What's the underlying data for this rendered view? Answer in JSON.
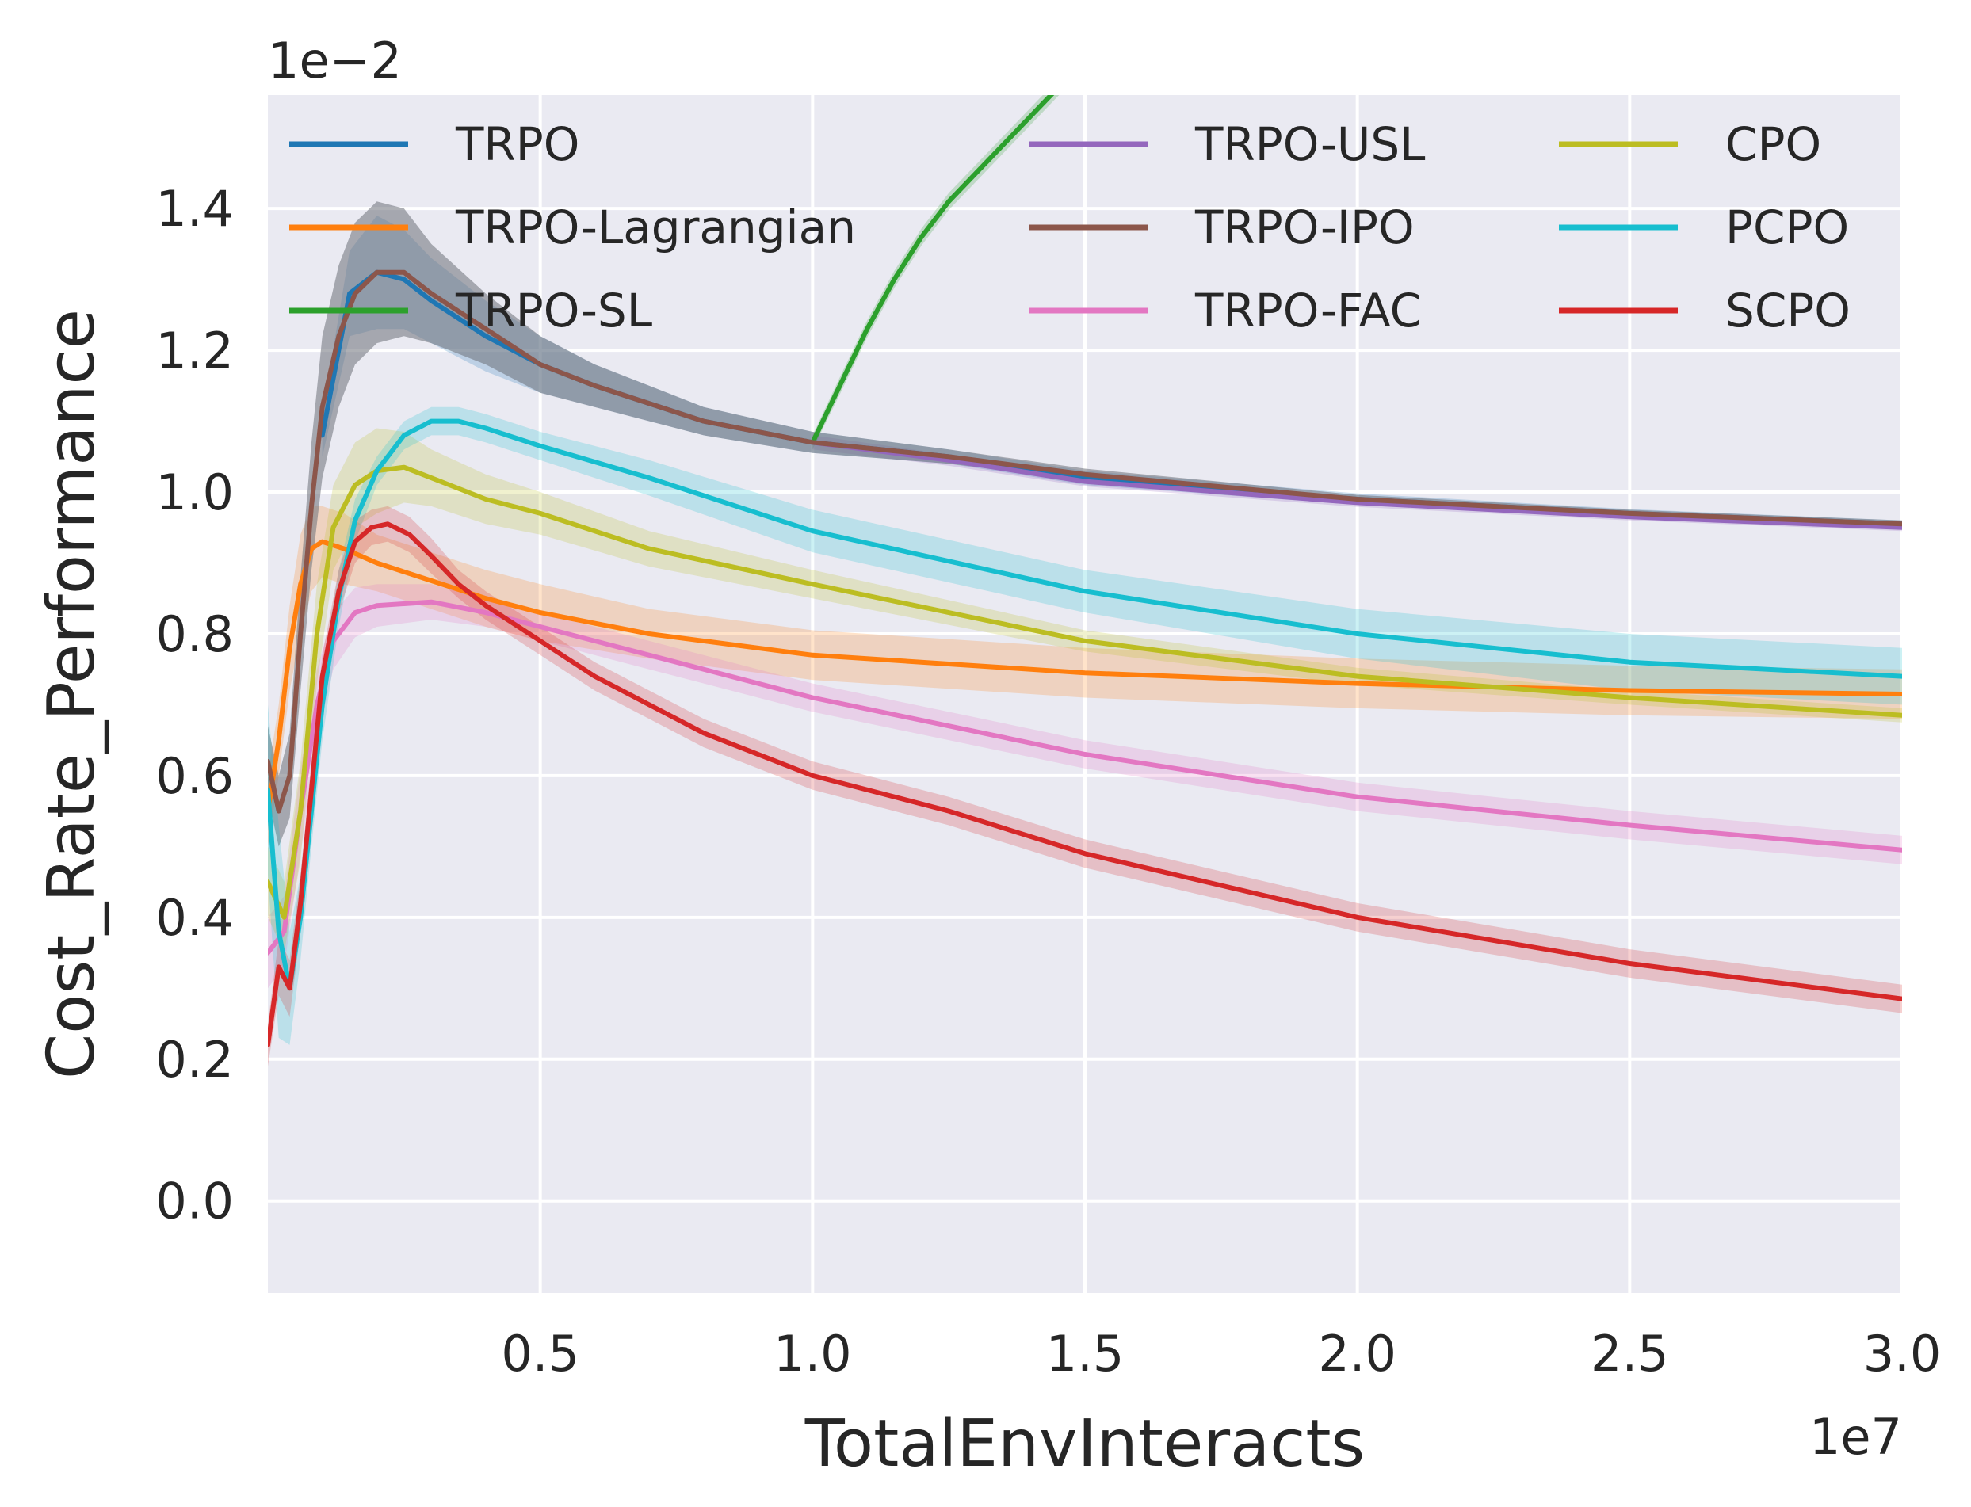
{
  "chart_data": {
    "type": "line",
    "title": "",
    "xlabel": "TotalEnvInteracts",
    "ylabel": "Cost_Rate_Performance",
    "x_offset_label": "1e7",
    "y_offset_label": "1e−2",
    "xlim": [
      0.0,
      3.0
    ],
    "ylim": [
      -0.13,
      1.56
    ],
    "grid": true,
    "background": "#eaeaf2",
    "legend_position": "top",
    "xticks": [
      "0.5",
      "1.0",
      "1.5",
      "2.0",
      "2.5",
      "3.0"
    ],
    "yticks": [
      "0.0",
      "0.2",
      "0.4",
      "0.6",
      "0.8",
      "1.0",
      "1.2",
      "1.4"
    ],
    "series": [
      {
        "name": "TRPO",
        "color": "#1f77b4",
        "x": [
          0.1,
          0.15,
          0.2,
          0.25,
          0.3,
          0.4,
          0.5,
          0.6,
          0.8,
          1.0,
          1.25,
          1.5,
          2.0,
          2.5,
          3.0
        ],
        "y": [
          1.08,
          1.28,
          1.31,
          1.3,
          1.27,
          1.22,
          1.18,
          1.15,
          1.1,
          1.07,
          1.05,
          1.02,
          0.99,
          0.97,
          0.955
        ],
        "band": [
          0.03,
          0.06,
          0.08,
          0.07,
          0.06,
          0.05,
          0.04,
          0.03,
          0.02,
          0.015,
          0.01,
          0.01,
          0.008,
          0.006,
          0.005
        ]
      },
      {
        "name": "TRPO-Lagrangian",
        "color": "#ff7f0e",
        "x": [
          0.0,
          0.02,
          0.04,
          0.06,
          0.08,
          0.1,
          0.14,
          0.2,
          0.3,
          0.4,
          0.5,
          0.7,
          1.0,
          1.5,
          2.0,
          2.5,
          3.0
        ],
        "y": [
          0.55,
          0.65,
          0.78,
          0.87,
          0.92,
          0.93,
          0.92,
          0.9,
          0.875,
          0.85,
          0.83,
          0.8,
          0.77,
          0.745,
          0.73,
          0.72,
          0.715
        ],
        "band": [
          0.05,
          0.05,
          0.06,
          0.07,
          0.06,
          0.05,
          0.05,
          0.04,
          0.04,
          0.04,
          0.04,
          0.035,
          0.035,
          0.035,
          0.035,
          0.035,
          0.035
        ]
      },
      {
        "name": "TRPO-SL",
        "color": "#2ca02c",
        "x": [
          1.0,
          1.05,
          1.1,
          1.15,
          1.2,
          1.25,
          1.3,
          1.35,
          1.4,
          1.45,
          1.5,
          1.55,
          1.6
        ],
        "y": [
          1.07,
          1.15,
          1.23,
          1.3,
          1.36,
          1.41,
          1.45,
          1.49,
          1.53,
          1.57,
          1.61,
          1.65,
          1.69
        ],
        "band": [
          0.01,
          0.012,
          0.012,
          0.012,
          0.012,
          0.012,
          0.012,
          0.012,
          0.012,
          0.012,
          0.012,
          0.012,
          0.012
        ]
      },
      {
        "name": "TRPO-USL",
        "color": "#9467bd",
        "x": [
          1.0,
          1.25,
          1.5,
          2.0,
          2.5,
          3.0
        ],
        "y": [
          1.07,
          1.045,
          1.015,
          0.985,
          0.965,
          0.95
        ],
        "band": [
          0.01,
          0.008,
          0.007,
          0.006,
          0.005,
          0.005
        ]
      },
      {
        "name": "TRPO-IPO",
        "color": "#8c564b",
        "x": [
          0.0,
          0.02,
          0.04,
          0.06,
          0.08,
          0.1,
          0.13,
          0.16,
          0.2,
          0.25,
          0.3,
          0.4,
          0.5,
          0.6,
          0.8,
          1.0,
          1.25,
          1.5,
          2.0,
          2.5,
          3.0
        ],
        "y": [
          0.62,
          0.55,
          0.6,
          0.8,
          0.98,
          1.12,
          1.22,
          1.28,
          1.31,
          1.31,
          1.28,
          1.23,
          1.18,
          1.15,
          1.1,
          1.07,
          1.05,
          1.025,
          0.99,
          0.97,
          0.955
        ],
        "band": [
          0.05,
          0.05,
          0.06,
          0.08,
          0.09,
          0.1,
          0.1,
          0.1,
          0.1,
          0.09,
          0.07,
          0.05,
          0.04,
          0.03,
          0.02,
          0.015,
          0.01,
          0.008,
          0.006,
          0.005,
          0.005
        ]
      },
      {
        "name": "TRPO-FAC",
        "color": "#e377c2",
        "x": [
          0.0,
          0.03,
          0.06,
          0.09,
          0.12,
          0.16,
          0.2,
          0.3,
          0.4,
          0.5,
          0.7,
          1.0,
          1.5,
          2.0,
          2.5,
          3.0
        ],
        "y": [
          0.35,
          0.38,
          0.55,
          0.7,
          0.79,
          0.83,
          0.84,
          0.845,
          0.83,
          0.81,
          0.77,
          0.71,
          0.63,
          0.57,
          0.53,
          0.495
        ],
        "band": [
          0.05,
          0.05,
          0.06,
          0.05,
          0.04,
          0.035,
          0.03,
          0.025,
          0.02,
          0.02,
          0.02,
          0.02,
          0.02,
          0.02,
          0.02,
          0.02
        ]
      },
      {
        "name": "CPO",
        "color": "#bcbd22",
        "x": [
          0.0,
          0.03,
          0.06,
          0.09,
          0.12,
          0.16,
          0.2,
          0.25,
          0.3,
          0.4,
          0.5,
          0.7,
          1.0,
          1.5,
          2.0,
          2.5,
          3.0
        ],
        "y": [
          0.45,
          0.4,
          0.55,
          0.8,
          0.95,
          1.01,
          1.03,
          1.035,
          1.02,
          0.99,
          0.97,
          0.92,
          0.87,
          0.79,
          0.74,
          0.71,
          0.685
        ],
        "band": [
          0.05,
          0.05,
          0.07,
          0.07,
          0.06,
          0.06,
          0.06,
          0.05,
          0.04,
          0.035,
          0.03,
          0.025,
          0.02,
          0.015,
          0.012,
          0.01,
          0.01
        ]
      },
      {
        "name": "PCPO",
        "color": "#17becf",
        "x": [
          0.0,
          0.02,
          0.04,
          0.06,
          0.08,
          0.1,
          0.13,
          0.16,
          0.2,
          0.25,
          0.3,
          0.35,
          0.4,
          0.5,
          0.7,
          1.0,
          1.5,
          2.0,
          2.5,
          3.0
        ],
        "y": [
          0.58,
          0.38,
          0.3,
          0.4,
          0.55,
          0.7,
          0.85,
          0.96,
          1.03,
          1.08,
          1.1,
          1.1,
          1.09,
          1.065,
          1.02,
          0.945,
          0.86,
          0.8,
          0.76,
          0.74
        ],
        "band": [
          0.12,
          0.15,
          0.08,
          0.06,
          0.05,
          0.05,
          0.04,
          0.03,
          0.02,
          0.02,
          0.02,
          0.02,
          0.02,
          0.02,
          0.025,
          0.03,
          0.03,
          0.035,
          0.04,
          0.04
        ]
      },
      {
        "name": "SCPO",
        "color": "#d62728",
        "x": [
          0.0,
          0.02,
          0.04,
          0.06,
          0.08,
          0.1,
          0.13,
          0.16,
          0.19,
          0.22,
          0.26,
          0.3,
          0.35,
          0.4,
          0.5,
          0.6,
          0.8,
          1.0,
          1.25,
          1.5,
          2.0,
          2.5,
          3.0
        ],
        "y": [
          0.22,
          0.33,
          0.3,
          0.42,
          0.58,
          0.74,
          0.86,
          0.93,
          0.95,
          0.955,
          0.94,
          0.91,
          0.87,
          0.84,
          0.79,
          0.74,
          0.66,
          0.6,
          0.55,
          0.49,
          0.4,
          0.335,
          0.285
        ],
        "band": [
          0.03,
          0.04,
          0.04,
          0.04,
          0.04,
          0.03,
          0.03,
          0.03,
          0.025,
          0.025,
          0.025,
          0.025,
          0.02,
          0.02,
          0.02,
          0.02,
          0.02,
          0.02,
          0.02,
          0.02,
          0.02,
          0.02,
          0.02
        ]
      }
    ]
  }
}
